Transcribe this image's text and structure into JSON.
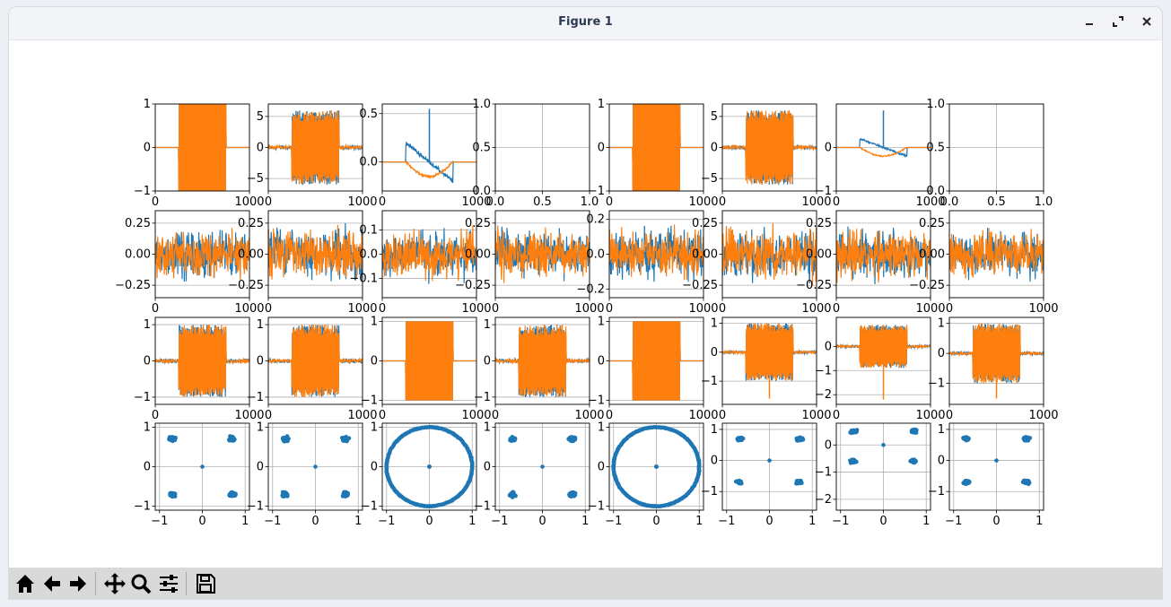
{
  "window": {
    "title": "Figure 1",
    "controls": [
      "minimize-icon",
      "maximize-icon",
      "close-icon"
    ]
  },
  "toolbar": {
    "buttons": [
      "home-icon",
      "back-icon",
      "forward-icon",
      "pan-icon",
      "zoom-icon",
      "configure-subplots-icon",
      "save-icon"
    ]
  },
  "colors": {
    "series_1": "#1f77b4",
    "series_2": "#ff7f0e",
    "grid": "#b0b0b0",
    "axes": "#000000"
  },
  "chart_data": {
    "type": "grid of subplots",
    "rows": 4,
    "cols": 8,
    "grid": true,
    "row_1": [
      {
        "type": "line",
        "xticks": [
          "0",
          "1000"
        ],
        "yticks": [
          "1",
          "0",
          "−1"
        ],
        "xlim": [
          0,
          1000
        ],
        "ylim": [
          -1,
          1
        ],
        "series": [
          {
            "color": "#1f77b4",
            "shape": "burst",
            "amplitude": 1,
            "x": [
              250,
              750
            ]
          },
          {
            "color": "#ff7f0e",
            "shape": "burst",
            "amplitude": 1,
            "x": [
              250,
              750
            ]
          }
        ]
      },
      {
        "type": "line",
        "xticks": [
          "0",
          "1000"
        ],
        "yticks": [
          "5",
          "0",
          "−5"
        ],
        "xlim": [
          0,
          1000
        ],
        "ylim": [
          -7,
          7
        ],
        "series": [
          {
            "color": "#1f77b4",
            "shape": "noise-burst",
            "base": 1,
            "amplitude": 6,
            "x": [
              250,
              750
            ]
          },
          {
            "color": "#ff7f0e",
            "shape": "noise-burst",
            "base": 1,
            "amplitude": 6,
            "x": [
              250,
              750
            ]
          }
        ]
      },
      {
        "type": "line",
        "xticks": [
          "0",
          "1000"
        ],
        "yticks": [
          "0.5",
          "0.0"
        ],
        "xlim": [
          0,
          1000
        ],
        "ylim": [
          -0.3,
          0.6
        ],
        "series": [
          {
            "color": "#1f77b4",
            "shape": "decay",
            "start": 0.2,
            "end": -0.2,
            "spike": 0.55,
            "x": [
              250,
              750
            ]
          },
          {
            "color": "#ff7f0e",
            "shape": "dip",
            "min": -0.15,
            "x": [
              250,
              750
            ]
          }
        ]
      },
      {
        "type": "empty",
        "xticks": [
          "0.0",
          "0.5",
          "1.0"
        ],
        "yticks": [
          "1.0",
          "0.5",
          "0.0"
        ],
        "xlim": [
          0,
          1
        ],
        "ylim": [
          0,
          1
        ]
      },
      {
        "type": "line",
        "xticks": [
          "0",
          "1000"
        ],
        "yticks": [
          "1",
          "0",
          "−1"
        ],
        "xlim": [
          0,
          1000
        ],
        "ylim": [
          -1,
          1
        ],
        "series": [
          {
            "color": "#1f77b4",
            "shape": "burst",
            "amplitude": 1,
            "x": [
              250,
              750
            ]
          },
          {
            "color": "#ff7f0e",
            "shape": "burst",
            "amplitude": 1,
            "x": [
              250,
              750
            ]
          }
        ]
      },
      {
        "type": "line",
        "xticks": [
          "0",
          "1000"
        ],
        "yticks": [
          "5",
          "0",
          "−5"
        ],
        "xlim": [
          0,
          1000
        ],
        "ylim": [
          -7,
          7
        ],
        "series": [
          {
            "color": "#1f77b4",
            "shape": "noise-burst",
            "base": 1,
            "amplitude": 6,
            "x": [
              250,
              750
            ]
          },
          {
            "color": "#ff7f0e",
            "shape": "noise-burst",
            "base": 1,
            "amplitude": 6,
            "x": [
              250,
              750
            ]
          }
        ]
      },
      {
        "type": "line",
        "xticks": [
          "0",
          "1000"
        ],
        "yticks": [
          "0",
          "−1"
        ],
        "xlim": [
          0,
          1000
        ],
        "ylim": [
          -1,
          1
        ],
        "series": [
          {
            "color": "#1f77b4",
            "shape": "decay",
            "start": 0.2,
            "end": -0.2,
            "spike": 0.85,
            "x": [
              250,
              750
            ]
          },
          {
            "color": "#ff7f0e",
            "shape": "dip",
            "min": -0.2,
            "x": [
              250,
              750
            ]
          }
        ]
      },
      {
        "type": "empty",
        "xticks": [
          "0.0",
          "0.5",
          "1.0"
        ],
        "yticks": [
          "1.0",
          "0.5",
          "0.0"
        ],
        "xlim": [
          0,
          1
        ],
        "ylim": [
          0,
          1
        ]
      }
    ],
    "row_2": [
      {
        "type": "line",
        "xticks": [
          "0",
          "1000"
        ],
        "yticks": [
          "0.25",
          "0.00",
          "−0.25"
        ],
        "ylim": [
          -0.35,
          0.35
        ],
        "series": [
          {
            "color": "#1f77b4",
            "shape": "noise",
            "amplitude": 0.3
          },
          {
            "color": "#ff7f0e",
            "shape": "noise",
            "amplitude": 0.3
          }
        ]
      },
      {
        "type": "line",
        "xticks": [
          "0",
          "1000"
        ],
        "yticks": [
          "0.25",
          "0.00",
          "−0.25"
        ],
        "ylim": [
          -0.35,
          0.35
        ],
        "series": [
          {
            "color": "#1f77b4",
            "shape": "noise",
            "amplitude": 0.3
          },
          {
            "color": "#ff7f0e",
            "shape": "noise",
            "amplitude": 0.3
          }
        ]
      },
      {
        "type": "line",
        "xticks": [
          "0",
          "1000"
        ],
        "yticks": [
          "0.1",
          "0.0",
          "−0.1"
        ],
        "ylim": [
          -0.18,
          0.18
        ],
        "series": [
          {
            "color": "#1f77b4",
            "shape": "noise",
            "amplitude": 0.15
          },
          {
            "color": "#ff7f0e",
            "shape": "noise",
            "amplitude": 0.15
          }
        ]
      },
      {
        "type": "line",
        "xticks": [
          "0",
          "1000"
        ],
        "yticks": [
          "0.25",
          "0.00",
          "−0.25"
        ],
        "ylim": [
          -0.35,
          0.35
        ],
        "series": [
          {
            "color": "#1f77b4",
            "shape": "noise",
            "amplitude": 0.3
          },
          {
            "color": "#ff7f0e",
            "shape": "noise",
            "amplitude": 0.3
          }
        ]
      },
      {
        "type": "line",
        "xticks": [
          "0",
          "1000"
        ],
        "yticks": [
          "0.2",
          "0.0",
          "−0.2"
        ],
        "ylim": [
          -0.25,
          0.25
        ],
        "series": [
          {
            "color": "#1f77b4",
            "shape": "noise",
            "amplitude": 0.22
          },
          {
            "color": "#ff7f0e",
            "shape": "noise",
            "amplitude": 0.22
          }
        ]
      },
      {
        "type": "line",
        "xticks": [
          "0",
          "1000"
        ],
        "yticks": [
          "0.25",
          "0.00",
          "−0.25"
        ],
        "ylim": [
          -0.35,
          0.35
        ],
        "series": [
          {
            "color": "#1f77b4",
            "shape": "noise",
            "amplitude": 0.3
          },
          {
            "color": "#ff7f0e",
            "shape": "noise",
            "amplitude": 0.3
          }
        ]
      },
      {
        "type": "line",
        "xticks": [
          "0",
          "1000"
        ],
        "yticks": [
          "0.25",
          "0.00",
          "−0.25"
        ],
        "ylim": [
          -0.35,
          0.35
        ],
        "series": [
          {
            "color": "#1f77b4",
            "shape": "noise",
            "amplitude": 0.3
          },
          {
            "color": "#ff7f0e",
            "shape": "noise",
            "amplitude": 0.3
          }
        ]
      },
      {
        "type": "line",
        "xticks": [
          "0",
          "1000"
        ],
        "yticks": [
          "0.25",
          "0.00",
          "−0.25"
        ],
        "ylim": [
          -0.35,
          0.35
        ],
        "series": [
          {
            "color": "#1f77b4",
            "shape": "noise",
            "amplitude": 0.3
          },
          {
            "color": "#ff7f0e",
            "shape": "noise",
            "amplitude": 0.3
          }
        ]
      }
    ],
    "row_3": [
      {
        "type": "line",
        "xticks": [
          "0",
          "1000"
        ],
        "yticks": [
          "1",
          "0",
          "−1"
        ],
        "ylim": [
          -1.2,
          1.2
        ],
        "series": [
          {
            "color": "#1f77b4",
            "shape": "noise-burst",
            "amplitude": 1,
            "x": [
              250,
              750
            ]
          },
          {
            "color": "#ff7f0e",
            "shape": "noise-burst",
            "amplitude": 1,
            "x": [
              250,
              750
            ]
          }
        ]
      },
      {
        "type": "line",
        "xticks": [
          "0",
          "1000"
        ],
        "yticks": [
          "1",
          "0",
          "−1"
        ],
        "ylim": [
          -1.2,
          1.2
        ],
        "series": [
          {
            "color": "#1f77b4",
            "shape": "noise-burst",
            "amplitude": 1,
            "x": [
              250,
              750
            ]
          },
          {
            "color": "#ff7f0e",
            "shape": "noise-burst",
            "amplitude": 1,
            "x": [
              250,
              750
            ]
          }
        ]
      },
      {
        "type": "line",
        "xticks": [
          "0",
          "1000"
        ],
        "yticks": [
          "1",
          "0",
          "−1"
        ],
        "ylim": [
          -1.1,
          1.1
        ],
        "series": [
          {
            "color": "#1f77b4",
            "shape": "burst",
            "amplitude": 1,
            "x": [
              250,
              750
            ]
          },
          {
            "color": "#ff7f0e",
            "shape": "burst",
            "amplitude": 1,
            "x": [
              250,
              750
            ]
          }
        ]
      },
      {
        "type": "line",
        "xticks": [
          "0",
          "1000"
        ],
        "yticks": [
          "1",
          "0",
          "−1"
        ],
        "ylim": [
          -1.2,
          1.2
        ],
        "series": [
          {
            "color": "#1f77b4",
            "shape": "noise-burst",
            "amplitude": 1,
            "x": [
              250,
              750
            ]
          },
          {
            "color": "#ff7f0e",
            "shape": "noise-burst",
            "amplitude": 1,
            "x": [
              250,
              750
            ]
          }
        ]
      },
      {
        "type": "line",
        "xticks": [
          "0",
          "1000"
        ],
        "yticks": [
          "1",
          "0",
          "−1"
        ],
        "ylim": [
          -1.1,
          1.1
        ],
        "series": [
          {
            "color": "#1f77b4",
            "shape": "burst",
            "amplitude": 1,
            "x": [
              250,
              750
            ]
          },
          {
            "color": "#ff7f0e",
            "shape": "burst",
            "amplitude": 1,
            "x": [
              250,
              750
            ]
          }
        ]
      },
      {
        "type": "line",
        "xticks": [
          "0",
          "1000"
        ],
        "yticks": [
          "1",
          "0",
          "−1"
        ],
        "ylim": [
          -1.8,
          1.2
        ],
        "series": [
          {
            "color": "#1f77b4",
            "shape": "noise-burst",
            "amplitude": 1,
            "x": [
              250,
              750
            ]
          },
          {
            "color": "#ff7f0e",
            "shape": "noise-burst",
            "amplitude": 1,
            "spike": -1.6,
            "x": [
              250,
              750
            ]
          }
        ]
      },
      {
        "type": "line",
        "xticks": [
          "0",
          "1000"
        ],
        "yticks": [
          "0",
          "−1",
          "−2"
        ],
        "ylim": [
          -2.4,
          1.2
        ],
        "series": [
          {
            "color": "#1f77b4",
            "shape": "noise-burst",
            "amplitude": 0.9,
            "x": [
              250,
              750
            ]
          },
          {
            "color": "#ff7f0e",
            "shape": "noise-burst",
            "amplitude": 0.9,
            "spike": -2.2,
            "x": [
              250,
              750
            ]
          }
        ]
      },
      {
        "type": "line",
        "xticks": [
          "0",
          "1000"
        ],
        "yticks": [
          "1",
          "0",
          "−1"
        ],
        "ylim": [
          -1.7,
          1.2
        ],
        "series": [
          {
            "color": "#1f77b4",
            "shape": "noise-burst",
            "amplitude": 1,
            "x": [
              250,
              750
            ]
          },
          {
            "color": "#ff7f0e",
            "shape": "noise-burst",
            "amplitude": 1,
            "spike": -1.5,
            "x": [
              250,
              750
            ]
          }
        ]
      }
    ],
    "row_4": [
      {
        "type": "scatter",
        "xticks": [
          "−1",
          "0",
          "1"
        ],
        "yticks": [
          "1",
          "0",
          "−1"
        ],
        "xlim": [
          -1.1,
          1.1
        ],
        "ylim": [
          -1.1,
          1.1
        ],
        "clusters": [
          [
            0.7,
            0.7
          ],
          [
            -0.7,
            0.7
          ],
          [
            0.7,
            -0.7
          ],
          [
            -0.7,
            -0.7
          ],
          [
            0,
            0
          ]
        ],
        "series_color": "#1f77b4"
      },
      {
        "type": "scatter",
        "xticks": [
          "−1",
          "0",
          "1"
        ],
        "yticks": [
          "1",
          "0",
          "−1"
        ],
        "xlim": [
          -1.1,
          1.1
        ],
        "ylim": [
          -1.1,
          1.1
        ],
        "clusters": [
          [
            0.7,
            0.7
          ],
          [
            -0.7,
            0.7
          ],
          [
            0.7,
            -0.7
          ],
          [
            -0.7,
            -0.7
          ],
          [
            0,
            0
          ]
        ],
        "series_color": "#1f77b4"
      },
      {
        "type": "scatter",
        "shape": "ring",
        "radius": 1,
        "xticks": [
          "−1",
          "0",
          "1"
        ],
        "yticks": [
          "1",
          "0",
          "−1"
        ],
        "xlim": [
          -1.1,
          1.1
        ],
        "ylim": [
          -1.1,
          1.1
        ],
        "center": [
          0,
          0
        ],
        "series_color": "#1f77b4"
      },
      {
        "type": "scatter",
        "xticks": [
          "−1",
          "0",
          "1"
        ],
        "yticks": [
          "1",
          "0",
          "−1"
        ],
        "xlim": [
          -1.1,
          1.1
        ],
        "ylim": [
          -1.1,
          1.1
        ],
        "clusters": [
          [
            0.7,
            0.7
          ],
          [
            -0.7,
            0.7
          ],
          [
            0.7,
            -0.7
          ],
          [
            -0.7,
            -0.7
          ],
          [
            0,
            0
          ]
        ],
        "series_color": "#1f77b4"
      },
      {
        "type": "scatter",
        "shape": "ring",
        "radius": 1,
        "xticks": [
          "−1",
          "0",
          "1"
        ],
        "yticks": [
          "1",
          "0",
          "−1"
        ],
        "xlim": [
          -1.1,
          1.1
        ],
        "ylim": [
          -1.1,
          1.1
        ],
        "center": [
          0,
          0
        ],
        "series_color": "#1f77b4"
      },
      {
        "type": "scatter",
        "xticks": [
          "−1",
          "0",
          "1"
        ],
        "yticks": [
          "1",
          "0",
          "−1"
        ],
        "xlim": [
          -1.1,
          1.1
        ],
        "ylim": [
          -1.6,
          1.2
        ],
        "clusters": [
          [
            0.7,
            0.7
          ],
          [
            -0.7,
            0.7
          ],
          [
            0.7,
            -0.7
          ],
          [
            -0.7,
            -0.7
          ],
          [
            0,
            0
          ]
        ],
        "series_color": "#1f77b4"
      },
      {
        "type": "scatter",
        "xticks": [
          "−1",
          "0",
          "1"
        ],
        "yticks": [
          "0",
          "−1",
          "−2"
        ],
        "xlim": [
          -1.1,
          1.1
        ],
        "ylim": [
          -2.4,
          0.8
        ],
        "clusters": [
          [
            0.7,
            0.5
          ],
          [
            -0.7,
            0.5
          ],
          [
            0.7,
            -0.6
          ],
          [
            -0.7,
            -0.6
          ],
          [
            0,
            0
          ]
        ],
        "series_color": "#1f77b4"
      },
      {
        "type": "scatter",
        "xticks": [
          "−1",
          "0",
          "1"
        ],
        "yticks": [
          "1",
          "0",
          "−1"
        ],
        "xlim": [
          -1.1,
          1.1
        ],
        "ylim": [
          -1.6,
          1.2
        ],
        "clusters": [
          [
            0.7,
            0.7
          ],
          [
            -0.7,
            0.7
          ],
          [
            0.7,
            -0.7
          ],
          [
            -0.7,
            -0.7
          ],
          [
            0,
            0
          ]
        ],
        "series_color": "#1f77b4"
      }
    ]
  }
}
